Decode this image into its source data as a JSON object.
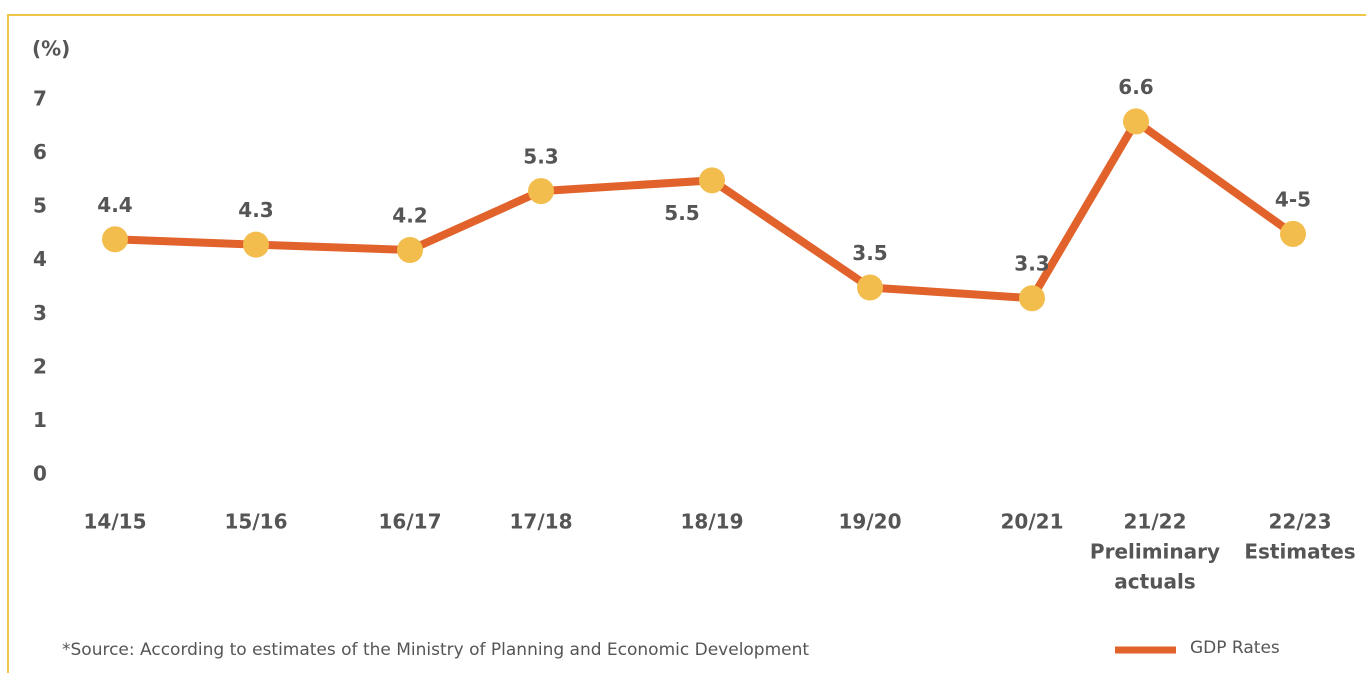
{
  "chart_data": {
    "type": "line",
    "y_label": "(%)",
    "categories": [
      [
        "14/15"
      ],
      [
        "15/16"
      ],
      [
        "16/17"
      ],
      [
        "17/18"
      ],
      [
        "18/19"
      ],
      [
        "19/20"
      ],
      [
        "20/21"
      ],
      [
        "21/22",
        "Preliminary",
        "actuals"
      ],
      [
        "22/23",
        "Estimates"
      ]
    ],
    "series": [
      {
        "name": "GDP Rates",
        "color": "#e2622b",
        "marker_color": "#f2bd4c",
        "values": [
          4.4,
          4.3,
          4.2,
          5.3,
          5.5,
          3.5,
          3.3,
          6.6,
          4.5
        ],
        "value_labels": [
          "4.4",
          "4.3",
          "4.2",
          "5.3",
          "5.5",
          "3.5",
          "3.3",
          "6.6",
          "4-5"
        ]
      }
    ],
    "ylim": [
      0,
      7
    ],
    "yticks": [
      0,
      1,
      2,
      3,
      4,
      5,
      6,
      7
    ],
    "grid": false,
    "legend": "bottom-right",
    "note": "*Source: According to estimates of the Ministry of Planning and Economic Development"
  }
}
